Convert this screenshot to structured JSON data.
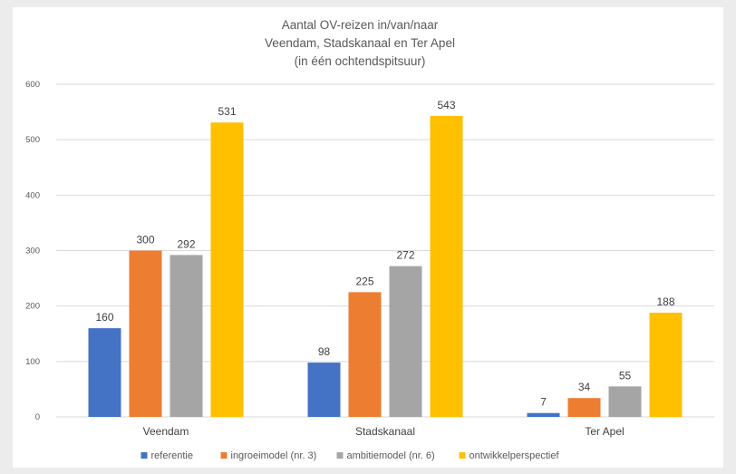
{
  "chart_data": {
    "type": "bar",
    "title_lines": [
      "Aantal OV-reizen in/van/naar",
      "Veendam, Stadskanaal en Ter Apel",
      "(in één ochtendspitsuur)"
    ],
    "categories": [
      "Veendam",
      "Stadskanaal",
      "Ter Apel"
    ],
    "series": [
      {
        "name": "referentie",
        "values": [
          160,
          98,
          7
        ],
        "color": "#4472c4"
      },
      {
        "name": "ingroeimodel (nr. 3)",
        "values": [
          300,
          225,
          34
        ],
        "color": "#ed7d31"
      },
      {
        "name": "ambitiemodel (nr. 6)",
        "values": [
          292,
          272,
          55
        ],
        "color": "#a5a5a5"
      },
      {
        "name": "ontwikkelperspectief",
        "values": [
          531,
          543,
          188
        ],
        "color": "#ffc000"
      }
    ],
    "ylim": [
      0,
      600
    ],
    "yticks": [
      "0",
      "100",
      "200",
      "300",
      "400",
      "500",
      "600"
    ],
    "grid": true,
    "data_labels": true,
    "legend_position": "bottom"
  }
}
